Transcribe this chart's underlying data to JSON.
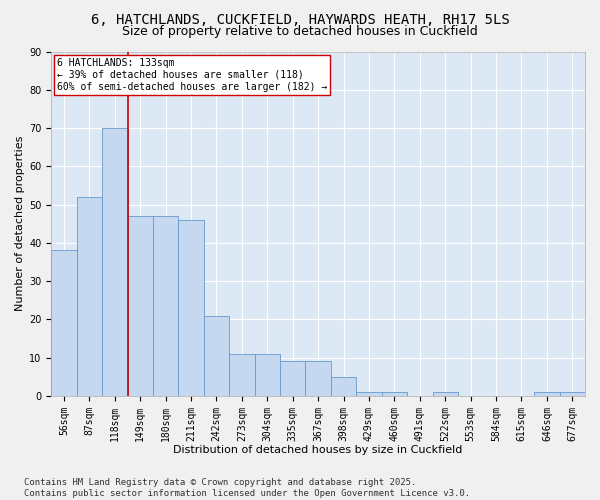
{
  "title_line1": "6, HATCHLANDS, CUCKFIELD, HAYWARDS HEATH, RH17 5LS",
  "title_line2": "Size of property relative to detached houses in Cuckfield",
  "xlabel": "Distribution of detached houses by size in Cuckfield",
  "ylabel": "Number of detached properties",
  "categories": [
    "56sqm",
    "87sqm",
    "118sqm",
    "149sqm",
    "180sqm",
    "211sqm",
    "242sqm",
    "273sqm",
    "304sqm",
    "335sqm",
    "367sqm",
    "398sqm",
    "429sqm",
    "460sqm",
    "491sqm",
    "522sqm",
    "553sqm",
    "584sqm",
    "615sqm",
    "646sqm",
    "677sqm"
  ],
  "values": [
    38,
    52,
    70,
    47,
    47,
    46,
    21,
    11,
    11,
    9,
    9,
    5,
    1,
    1,
    0,
    1,
    0,
    0,
    0,
    1,
    1
  ],
  "bar_color": "#c5d8f0",
  "bar_edge_color": "#6699cc",
  "vline_x_index": 2,
  "vline_color": "#cc0000",
  "annotation_box_text": "6 HATCHLANDS: 133sqm\n← 39% of detached houses are smaller (118)\n60% of semi-detached houses are larger (182) →",
  "annotation_box_color": "#ffffff",
  "annotation_border_color": "#cc0000",
  "ylim": [
    0,
    90
  ],
  "yticks": [
    0,
    10,
    20,
    30,
    40,
    50,
    60,
    70,
    80,
    90
  ],
  "background_color": "#dde8f5",
  "grid_color": "#ffffff",
  "figure_facecolor": "#f0f0f0",
  "footnote": "Contains HM Land Registry data © Crown copyright and database right 2025.\nContains public sector information licensed under the Open Government Licence v3.0.",
  "title_fontsize": 10,
  "subtitle_fontsize": 9,
  "axis_label_fontsize": 8,
  "tick_fontsize": 7,
  "annotation_fontsize": 7,
  "footnote_fontsize": 6.5
}
